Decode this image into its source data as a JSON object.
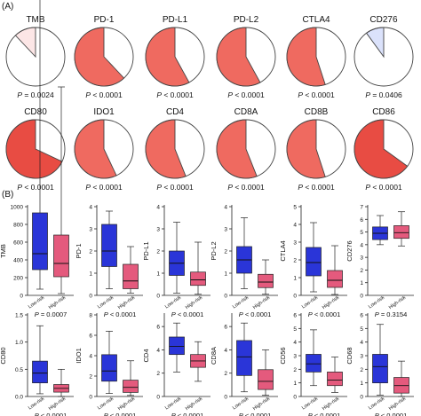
{
  "panel_labels": {
    "a": "(A)",
    "b": "(B)"
  },
  "p_prefix": "P",
  "colors": {
    "pie_border": "#444444",
    "pie_empty": "#ffffff",
    "low_risk_box": "#2a35d8",
    "high_risk_box": "#e45a7d",
    "tmb_fill": "#fce6e6",
    "cd276_fill": "#dbe2fb",
    "red_mid": "#ef6a60",
    "red_strong": "#e84c43"
  },
  "chart_data": [
    {
      "type": "pie",
      "panel": "(A)",
      "pies": [
        {
          "name": "TMB",
          "fraction": 0.12,
          "color": "#fce6e6",
          "p_text": " = 0.0024"
        },
        {
          "name": "PD-1",
          "fraction": 0.62,
          "color": "#ef6a60",
          "p_text": " < 0.0001"
        },
        {
          "name": "PD-L1",
          "fraction": 0.58,
          "color": "#ef6a60",
          "p_text": " < 0.0001"
        },
        {
          "name": "PD-L2",
          "fraction": 0.58,
          "color": "#ef6a60",
          "p_text": " < 0.0001"
        },
        {
          "name": "CTLA4",
          "fraction": 0.55,
          "color": "#ef6a60",
          "p_text": " < 0.0001"
        },
        {
          "name": "CD276",
          "fraction": 0.1,
          "color": "#dbe2fb",
          "p_text": " = 0.0406"
        },
        {
          "name": "CD80",
          "fraction": 0.68,
          "color": "#e84c43",
          "p_text": " < 0.0001"
        },
        {
          "name": "IDO1",
          "fraction": 0.57,
          "color": "#ef6a60",
          "p_text": " < 0.0001"
        },
        {
          "name": "CD4",
          "fraction": 0.56,
          "color": "#ef6a60",
          "p_text": " < 0.0001"
        },
        {
          "name": "CD8A",
          "fraction": 0.56,
          "color": "#ef6a60",
          "p_text": " < 0.0001"
        },
        {
          "name": "CD8B",
          "fraction": 0.55,
          "color": "#ef6a60",
          "p_text": " < 0.0001"
        },
        {
          "name": "CD86",
          "fraction": 0.65,
          "color": "#e84c43",
          "p_text": " < 0.0001"
        }
      ]
    },
    {
      "type": "box",
      "panel": "(B)",
      "categories": [
        "Low-risk",
        "High-risk"
      ],
      "plots": [
        {
          "ylabel": "TMB",
          "ticks": [
            0,
            200,
            400,
            600,
            800,
            1000
          ],
          "ylim": [
            0,
            1000
          ],
          "p_text": " = 0.0007",
          "boxes": [
            [
              70,
              290,
              470,
              930,
              3450
            ],
            [
              20,
              210,
              360,
              680,
              2350
            ]
          ]
        },
        {
          "ylabel": "PD-1",
          "ticks": [
            0,
            1,
            2,
            3,
            4
          ],
          "ylim": [
            0,
            4
          ],
          "p_text": " < 0.0001",
          "boxes": [
            [
              0.3,
              1.3,
              2.0,
              3.2,
              3.8
            ],
            [
              0.1,
              0.3,
              0.65,
              1.4,
              2.2
            ]
          ]
        },
        {
          "ylabel": "PD-L1",
          "ticks": [
            0,
            1,
            2,
            3,
            4
          ],
          "ylim": [
            0,
            4
          ],
          "p_text": " < 0.0001",
          "boxes": [
            [
              0.1,
              0.9,
              1.45,
              2.0,
              3.3
            ],
            [
              0.05,
              0.45,
              0.7,
              1.05,
              2.4
            ]
          ]
        },
        {
          "ylabel": "PD-L2",
          "ticks": [
            0,
            1,
            2,
            3,
            4
          ],
          "ylim": [
            0,
            4
          ],
          "p_text": " < 0.0001",
          "boxes": [
            [
              0.3,
              1.0,
              1.6,
              2.2,
              3.5
            ],
            [
              0.05,
              0.35,
              0.6,
              0.95,
              1.6
            ]
          ]
        },
        {
          "ylabel": "CTLA4",
          "ticks": [
            0,
            1,
            2,
            3,
            4,
            5
          ],
          "ylim": [
            0,
            5
          ],
          "p_text": " < 0.0001",
          "boxes": [
            [
              0.2,
              1.1,
              1.85,
              2.7,
              4.1
            ],
            [
              0.05,
              0.45,
              0.85,
              1.4,
              2.8
            ]
          ]
        },
        {
          "ylabel": "CD276",
          "ticks": [
            0,
            1,
            2,
            3,
            4,
            5,
            6,
            7
          ],
          "ylim": [
            0,
            7
          ],
          "p_text": " = 0.3154",
          "boxes": [
            [
              4.0,
              4.4,
              4.9,
              5.4,
              6.3
            ],
            [
              3.9,
              4.5,
              4.95,
              5.5,
              6.6
            ]
          ]
        },
        {
          "ylabel": "CD80",
          "ticks": [
            0.0,
            0.5,
            1.0,
            1.5
          ],
          "ylim": [
            0,
            1.5
          ],
          "p_text": " < 0.0001",
          "boxes": [
            [
              0.05,
              0.25,
              0.43,
              0.65,
              1.3
            ],
            [
              0.0,
              0.08,
              0.15,
              0.22,
              0.5
            ]
          ]
        },
        {
          "ylabel": "IDO1",
          "ticks": [
            0,
            2,
            4,
            6,
            8
          ],
          "ylim": [
            0,
            8
          ],
          "p_text": " < 0.0001",
          "boxes": [
            [
              0.3,
              1.5,
              2.5,
              4.1,
              6.4
            ],
            [
              0.1,
              0.4,
              0.9,
              1.6,
              3.5
            ]
          ]
        },
        {
          "ylabel": "CD4",
          "ticks": [
            0,
            2,
            4,
            6
          ],
          "ylim": [
            0,
            7
          ],
          "p_text": " < 0.0001",
          "boxes": [
            [
              2.1,
              3.6,
              4.3,
              5.1,
              6.3
            ],
            [
              1.3,
              2.5,
              3.05,
              3.6,
              4.7
            ]
          ]
        },
        {
          "ylabel": "CD8A",
          "ticks": [
            0,
            2,
            4,
            6
          ],
          "ylim": [
            0,
            7
          ],
          "p_text": " < 0.0001",
          "boxes": [
            [
              0.4,
              1.8,
              3.4,
              4.8,
              6.3
            ],
            [
              0.1,
              0.6,
              1.3,
              2.3,
              4.0
            ]
          ]
        },
        {
          "ylabel": "CD56",
          "ticks": [
            0,
            1,
            2,
            3,
            4,
            5,
            6
          ],
          "ylim": [
            0,
            6
          ],
          "p_text": " < 0.0001",
          "boxes": [
            [
              0.8,
              1.8,
              2.4,
              3.1,
              4.9
            ],
            [
              0.3,
              0.8,
              1.2,
              1.8,
              2.9
            ]
          ]
        },
        {
          "ylabel": "CD68",
          "ticks": [
            0,
            1,
            2,
            3,
            4,
            5,
            6
          ],
          "ylim": [
            0,
            6
          ],
          "p_text": " < 0.0001",
          "boxes": [
            [
              0.1,
              1.0,
              2.2,
              3.1,
              5.3
            ],
            [
              0.0,
              0.25,
              0.8,
              1.4,
              2.6
            ]
          ]
        }
      ]
    }
  ]
}
